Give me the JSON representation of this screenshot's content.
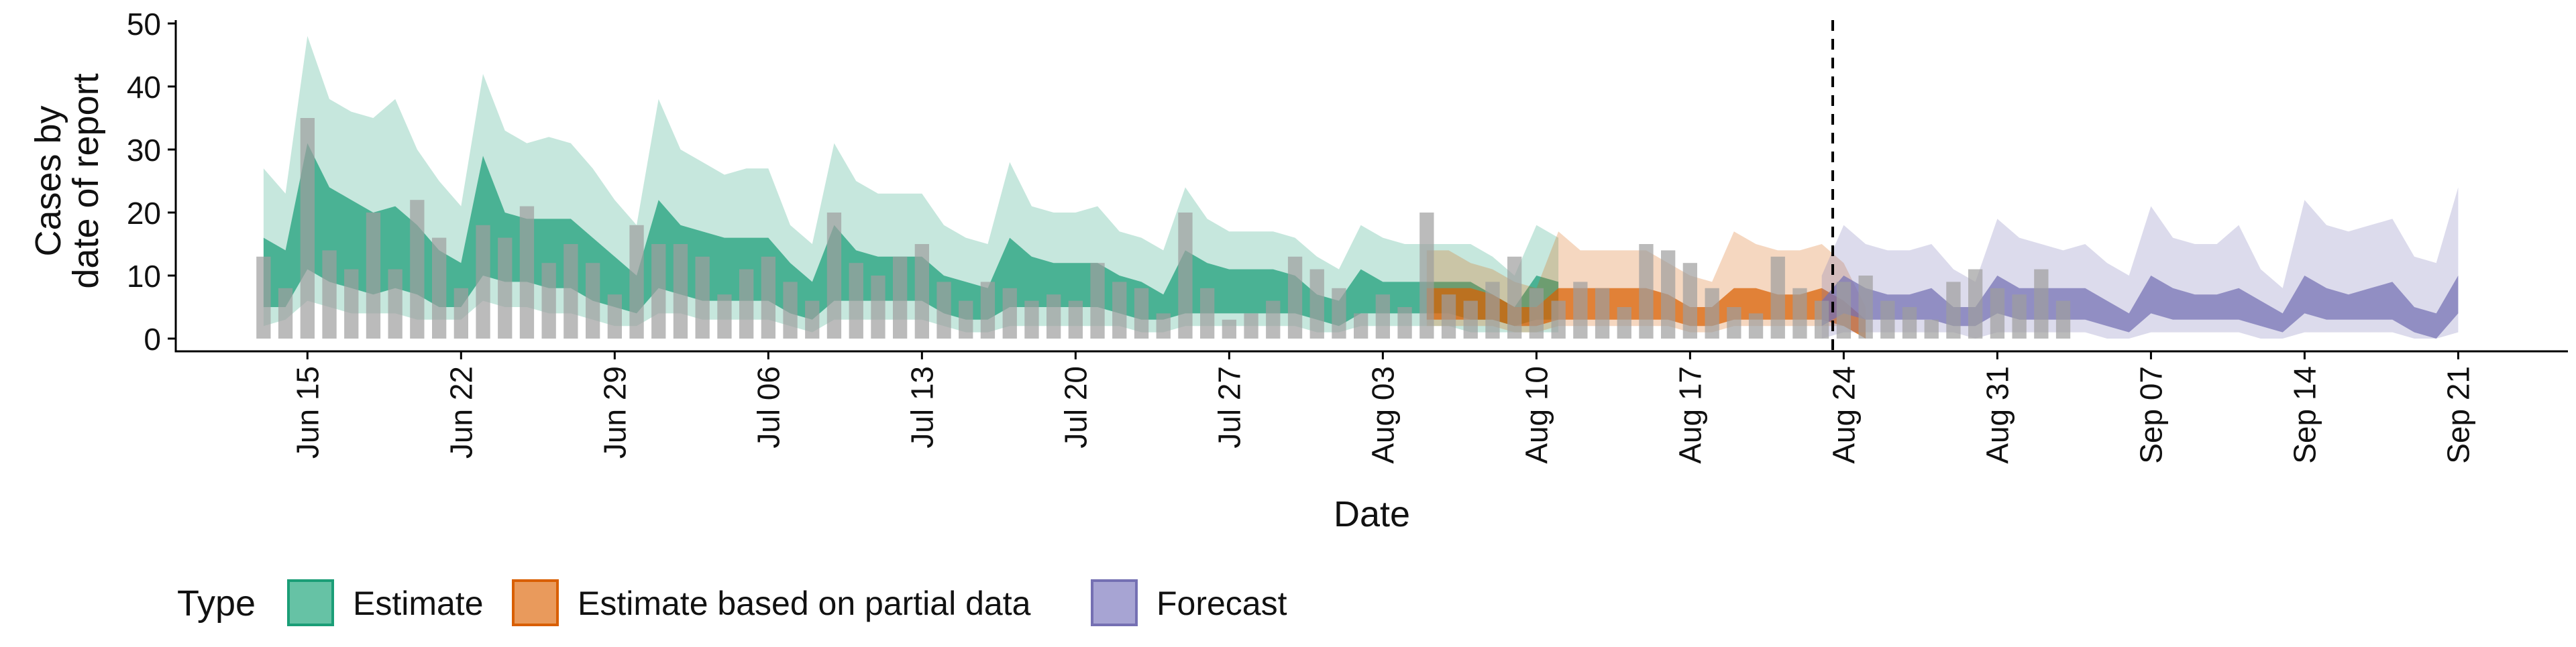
{
  "chart_data": {
    "type": "area",
    "xlabel": "Date",
    "ylabel_lines": [
      "Cases by",
      "date of report"
    ],
    "ylim": [
      0,
      50
    ],
    "y_ticks": [
      0,
      10,
      20,
      30,
      40,
      50
    ],
    "x_range": [
      "2020-06-09",
      "2020-09-26"
    ],
    "x_ticks": [
      {
        "date": "2020-06-15",
        "label": "Jun 15"
      },
      {
        "date": "2020-06-22",
        "label": "Jun 22"
      },
      {
        "date": "2020-06-29",
        "label": "Jun 29"
      },
      {
        "date": "2020-07-06",
        "label": "Jul 06"
      },
      {
        "date": "2020-07-13",
        "label": "Jul 13"
      },
      {
        "date": "2020-07-20",
        "label": "Jul 20"
      },
      {
        "date": "2020-07-27",
        "label": "Jul 27"
      },
      {
        "date": "2020-08-03",
        "label": "Aug 03"
      },
      {
        "date": "2020-08-10",
        "label": "Aug 10"
      },
      {
        "date": "2020-08-17",
        "label": "Aug 17"
      },
      {
        "date": "2020-08-24",
        "label": "Aug 24"
      },
      {
        "date": "2020-08-31",
        "label": "Aug 31"
      },
      {
        "date": "2020-09-07",
        "label": "Sep 07"
      },
      {
        "date": "2020-09-14",
        "label": "Sep 14"
      },
      {
        "date": "2020-09-21",
        "label": "Sep 21"
      }
    ],
    "vline_date": "2020-08-23",
    "legend": {
      "title": "Type",
      "position": "bottom",
      "entries": [
        {
          "label": "Estimate",
          "fill": "#66C2A5",
          "stroke": "#1B9E77"
        },
        {
          "label": "Estimate based on partial data",
          "fill": "#E99A5C",
          "stroke": "#D95F02"
        },
        {
          "label": "Forecast",
          "fill": "#A7A4D3",
          "stroke": "#7570B3"
        }
      ]
    },
    "observed": {
      "start_date": "2020-06-13",
      "color": "#9E9E9E",
      "values": [
        13,
        8,
        35,
        14,
        11,
        20,
        11,
        22,
        16,
        8,
        18,
        16,
        21,
        12,
        15,
        12,
        7,
        18,
        15,
        15,
        13,
        7,
        11,
        13,
        9,
        6,
        20,
        12,
        10,
        13,
        15,
        9,
        6,
        9,
        8,
        6,
        7,
        6,
        12,
        9,
        8,
        4,
        20,
        8,
        3,
        4,
        6,
        13,
        11,
        8,
        4,
        7,
        5,
        20,
        7,
        6,
        9,
        13,
        8,
        6,
        9,
        8,
        5,
        15,
        14,
        12,
        8,
        5,
        4,
        13,
        8,
        6,
        9,
        10,
        6,
        5,
        3,
        9,
        11,
        8,
        7,
        11,
        6
      ]
    },
    "series": [
      {
        "name": "Estimate",
        "start_date": "2020-06-13",
        "fill": "#1B9E77",
        "q90": [
          [
            2,
            27
          ],
          [
            3,
            23
          ],
          [
            6,
            48
          ],
          [
            5,
            38
          ],
          [
            4,
            36
          ],
          [
            4,
            35
          ],
          [
            4,
            38
          ],
          [
            3,
            30
          ],
          [
            3,
            25
          ],
          [
            3,
            21
          ],
          [
            6,
            42
          ],
          [
            5,
            33
          ],
          [
            5,
            31
          ],
          [
            4,
            32
          ],
          [
            4,
            31
          ],
          [
            3,
            27
          ],
          [
            2,
            22
          ],
          [
            2,
            18
          ],
          [
            4,
            38
          ],
          [
            4,
            30
          ],
          [
            3,
            28
          ],
          [
            3,
            26
          ],
          [
            3,
            27
          ],
          [
            3,
            27
          ],
          [
            2,
            18
          ],
          [
            1,
            15
          ],
          [
            3,
            31
          ],
          [
            3,
            25
          ],
          [
            3,
            23
          ],
          [
            3,
            23
          ],
          [
            3,
            23
          ],
          [
            2,
            18
          ],
          [
            1,
            16
          ],
          [
            1,
            15
          ],
          [
            2,
            28
          ],
          [
            2,
            21
          ],
          [
            2,
            20
          ],
          [
            2,
            20
          ],
          [
            2,
            21
          ],
          [
            2,
            17
          ],
          [
            1,
            16
          ],
          [
            1,
            14
          ],
          [
            2,
            24
          ],
          [
            2,
            19
          ],
          [
            2,
            17
          ],
          [
            2,
            17
          ],
          [
            2,
            17
          ],
          [
            2,
            16
          ],
          [
            1,
            13
          ],
          [
            1,
            11
          ],
          [
            2,
            18
          ],
          [
            2,
            16
          ],
          [
            2,
            15
          ],
          [
            2,
            15
          ],
          [
            2,
            15
          ],
          [
            1,
            15
          ],
          [
            1,
            13
          ],
          [
            1,
            10
          ],
          [
            1,
            18
          ],
          [
            1,
            16
          ]
        ],
        "q50": [
          [
            5,
            16
          ],
          [
            5,
            14
          ],
          [
            11,
            31
          ],
          [
            9,
            24
          ],
          [
            8,
            22
          ],
          [
            7,
            20
          ],
          [
            8,
            21
          ],
          [
            7,
            18
          ],
          [
            5,
            14
          ],
          [
            5,
            12
          ],
          [
            10,
            29
          ],
          [
            9,
            20
          ],
          [
            9,
            19
          ],
          [
            8,
            19
          ],
          [
            8,
            19
          ],
          [
            6,
            16
          ],
          [
            5,
            13
          ],
          [
            4,
            10
          ],
          [
            8,
            22
          ],
          [
            7,
            18
          ],
          [
            6,
            17
          ],
          [
            6,
            16
          ],
          [
            6,
            16
          ],
          [
            6,
            16
          ],
          [
            4,
            12
          ],
          [
            3,
            9
          ],
          [
            6,
            18
          ],
          [
            6,
            14
          ],
          [
            6,
            13
          ],
          [
            6,
            13
          ],
          [
            6,
            13
          ],
          [
            4,
            10
          ],
          [
            3,
            9
          ],
          [
            3,
            8
          ],
          [
            5,
            16
          ],
          [
            5,
            13
          ],
          [
            5,
            12
          ],
          [
            5,
            12
          ],
          [
            5,
            12
          ],
          [
            4,
            10
          ],
          [
            3,
            9
          ],
          [
            3,
            7
          ],
          [
            4,
            14
          ],
          [
            4,
            12
          ],
          [
            4,
            11
          ],
          [
            4,
            11
          ],
          [
            4,
            11
          ],
          [
            4,
            10
          ],
          [
            3,
            7
          ],
          [
            2,
            6
          ],
          [
            4,
            11
          ],
          [
            4,
            9
          ],
          [
            4,
            9
          ],
          [
            4,
            9
          ],
          [
            4,
            9
          ],
          [
            3,
            9
          ],
          [
            3,
            7
          ],
          [
            2,
            5
          ],
          [
            3,
            10
          ],
          [
            3,
            9
          ]
        ]
      },
      {
        "name": "Estimate based on partial data",
        "start_date": "2020-08-05",
        "fill": "#D95F02",
        "q90": [
          [
            2,
            14
          ],
          [
            2,
            14
          ],
          [
            2,
            12
          ],
          [
            2,
            11
          ],
          [
            1,
            9
          ],
          [
            1,
            8
          ],
          [
            2,
            17
          ],
          [
            2,
            14
          ],
          [
            2,
            14
          ],
          [
            2,
            14
          ],
          [
            2,
            14
          ],
          [
            2,
            12
          ],
          [
            1,
            10
          ],
          [
            1,
            9
          ],
          [
            2,
            17
          ],
          [
            2,
            15
          ],
          [
            2,
            14
          ],
          [
            2,
            14
          ],
          [
            2,
            15
          ],
          [
            2,
            12
          ],
          [
            0,
            5
          ]
        ],
        "q50": [
          [
            3,
            8
          ],
          [
            3,
            8
          ],
          [
            3,
            8
          ],
          [
            3,
            7
          ],
          [
            2,
            5
          ],
          [
            2,
            5
          ],
          [
            3,
            8
          ],
          [
            3,
            8
          ],
          [
            3,
            8
          ],
          [
            3,
            8
          ],
          [
            3,
            8
          ],
          [
            3,
            7
          ],
          [
            2,
            5
          ],
          [
            2,
            5
          ],
          [
            3,
            8
          ],
          [
            3,
            8
          ],
          [
            3,
            7
          ],
          [
            3,
            7
          ],
          [
            3,
            8
          ],
          [
            2,
            6
          ],
          [
            0,
            3
          ]
        ]
      },
      {
        "name": "Forecast",
        "start_date": "2020-08-23",
        "fill": "#7570B3",
        "q90": [
          [
            0,
            10
          ],
          [
            1,
            18
          ],
          [
            1,
            15
          ],
          [
            1,
            14
          ],
          [
            1,
            14
          ],
          [
            1,
            15
          ],
          [
            1,
            11
          ],
          [
            0,
            9
          ],
          [
            1,
            19
          ],
          [
            1,
            16
          ],
          [
            1,
            15
          ],
          [
            1,
            14
          ],
          [
            1,
            15
          ],
          [
            0,
            12
          ],
          [
            0,
            10
          ],
          [
            1,
            21
          ],
          [
            1,
            16
          ],
          [
            1,
            15
          ],
          [
            1,
            15
          ],
          [
            1,
            18
          ],
          [
            0,
            11
          ],
          [
            0,
            8
          ],
          [
            1,
            22
          ],
          [
            1,
            18
          ],
          [
            1,
            17
          ],
          [
            1,
            18
          ],
          [
            1,
            19
          ],
          [
            0,
            13
          ],
          [
            0,
            12
          ],
          [
            1,
            24
          ]
        ],
        "q50": [
          [
            2,
            6
          ],
          [
            4,
            10
          ],
          [
            3,
            8
          ],
          [
            3,
            7
          ],
          [
            3,
            7
          ],
          [
            3,
            8
          ],
          [
            2,
            5
          ],
          [
            2,
            5
          ],
          [
            4,
            10
          ],
          [
            3,
            8
          ],
          [
            3,
            8
          ],
          [
            3,
            8
          ],
          [
            3,
            8
          ],
          [
            2,
            6
          ],
          [
            1,
            4
          ],
          [
            4,
            10
          ],
          [
            3,
            8
          ],
          [
            3,
            7
          ],
          [
            3,
            7
          ],
          [
            3,
            8
          ],
          [
            2,
            6
          ],
          [
            1,
            4
          ],
          [
            4,
            10
          ],
          [
            3,
            8
          ],
          [
            3,
            7
          ],
          [
            3,
            8
          ],
          [
            3,
            9
          ],
          [
            1,
            5
          ],
          [
            0,
            4
          ],
          [
            4,
            10
          ]
        ]
      }
    ]
  }
}
